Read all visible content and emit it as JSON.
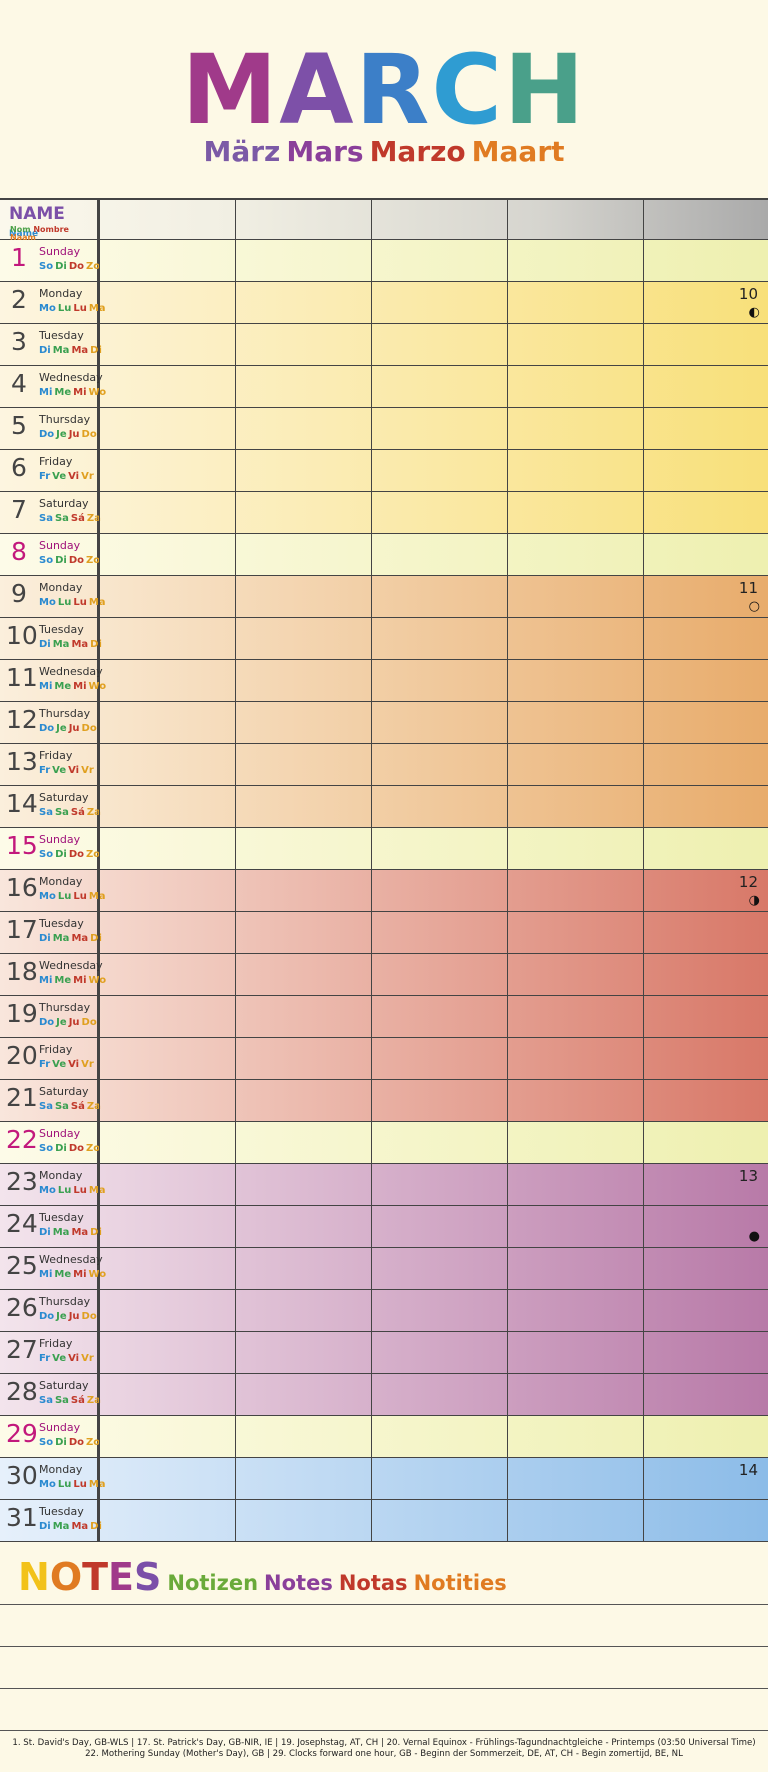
{
  "title": {
    "letters": [
      {
        "t": "M",
        "color": "#a03a8a"
      },
      {
        "t": "A",
        "color": "#7d50a8"
      },
      {
        "t": "R",
        "color": "#3c7fc8"
      },
      {
        "t": "C",
        "color": "#2f9cd2"
      },
      {
        "t": "H",
        "color": "#4aa08a"
      }
    ],
    "translations": [
      {
        "t": "März",
        "color": "#7b5aa6"
      },
      {
        "t": "Mars",
        "color": "#8a3f9a"
      },
      {
        "t": "Marzo",
        "color": "#c0392b"
      },
      {
        "t": "Maart",
        "color": "#e07b22"
      }
    ]
  },
  "header": {
    "name": "NAME",
    "name_en": "Name",
    "name_others": [
      {
        "t": "Nom",
        "color": "#4aa048"
      },
      {
        "t": "Nombre",
        "color": "#c0392b"
      },
      {
        "t": "Naam",
        "color": "#e07b22"
      }
    ]
  },
  "abbr_sets": {
    "Sunday": [
      "So",
      "Di",
      "Do",
      "Zo"
    ],
    "Monday": [
      "Mo",
      "Lu",
      "Lu",
      "Ma"
    ],
    "Tuesday": [
      "Di",
      "Ma",
      "Ma",
      "Di"
    ],
    "Wednesday": [
      "Mi",
      "Me",
      "Mi",
      "Wo"
    ],
    "Thursday": [
      "Do",
      "Je",
      "Ju",
      "Do"
    ],
    "Friday": [
      "Fr",
      "Ve",
      "Vi",
      "Vr"
    ],
    "Saturday": [
      "Sa",
      "Sa",
      "Sá",
      "Za"
    ]
  },
  "abbr_colors": [
    "#2a8ad0",
    "#3aa050",
    "#c0392b",
    "#e0a020"
  ],
  "days": [
    {
      "n": "1",
      "name": "Sunday",
      "band": "sun"
    },
    {
      "n": "2",
      "name": "Monday",
      "band": "yellow",
      "moon_num": "10",
      "moon": "◐"
    },
    {
      "n": "3",
      "name": "Tuesday",
      "band": "yellow"
    },
    {
      "n": "4",
      "name": "Wednesday",
      "band": "yellow"
    },
    {
      "n": "5",
      "name": "Thursday",
      "band": "yellow"
    },
    {
      "n": "6",
      "name": "Friday",
      "band": "yellow"
    },
    {
      "n": "7",
      "name": "Saturday",
      "band": "yellow"
    },
    {
      "n": "8",
      "name": "Sunday",
      "band": "sun"
    },
    {
      "n": "9",
      "name": "Monday",
      "band": "orange",
      "moon_num": "11",
      "moon": "○"
    },
    {
      "n": "10",
      "name": "Tuesday",
      "band": "orange"
    },
    {
      "n": "11",
      "name": "Wednesday",
      "band": "orange"
    },
    {
      "n": "12",
      "name": "Thursday",
      "band": "orange"
    },
    {
      "n": "13",
      "name": "Friday",
      "band": "orange"
    },
    {
      "n": "14",
      "name": "Saturday",
      "band": "orange"
    },
    {
      "n": "15",
      "name": "Sunday",
      "band": "sun"
    },
    {
      "n": "16",
      "name": "Monday",
      "band": "red",
      "moon_num": "12",
      "moon": "◑"
    },
    {
      "n": "17",
      "name": "Tuesday",
      "band": "red"
    },
    {
      "n": "18",
      "name": "Wednesday",
      "band": "red"
    },
    {
      "n": "19",
      "name": "Thursday",
      "band": "red"
    },
    {
      "n": "20",
      "name": "Friday",
      "band": "red"
    },
    {
      "n": "21",
      "name": "Saturday",
      "band": "red"
    },
    {
      "n": "22",
      "name": "Sunday",
      "band": "sun"
    },
    {
      "n": "23",
      "name": "Monday",
      "band": "purple",
      "moon_num": "13"
    },
    {
      "n": "24",
      "name": "Tuesday",
      "band": "purple",
      "moon": "●"
    },
    {
      "n": "25",
      "name": "Wednesday",
      "band": "purple"
    },
    {
      "n": "26",
      "name": "Thursday",
      "band": "purple"
    },
    {
      "n": "27",
      "name": "Friday",
      "band": "purple"
    },
    {
      "n": "28",
      "name": "Saturday",
      "band": "purple"
    },
    {
      "n": "29",
      "name": "Sunday",
      "band": "sun"
    },
    {
      "n": "30",
      "name": "Monday",
      "band": "blue",
      "moon_num": "14"
    },
    {
      "n": "31",
      "name": "Tuesday",
      "band": "blue"
    }
  ],
  "band_colors": {
    "sun": [
      "#fdfbe8",
      "#eef0b0"
    ],
    "yellow": [
      "#fdf5e0",
      "#f8e07a"
    ],
    "orange": [
      "#fbefdc",
      "#e8ac6c"
    ],
    "red": [
      "#f9e6dc",
      "#d87868"
    ],
    "purple": [
      "#f3e4ec",
      "#b87aa8"
    ],
    "blue": [
      "#e6f0fb",
      "#8cbce8"
    ]
  },
  "notes": {
    "letters": [
      {
        "t": "N",
        "color": "#f2c21a"
      },
      {
        "t": "O",
        "color": "#e07b22"
      },
      {
        "t": "T",
        "color": "#c0392b"
      },
      {
        "t": "E",
        "color": "#a03a8a"
      },
      {
        "t": "S",
        "color": "#7b4fa8"
      }
    ],
    "translations": [
      {
        "t": "Notizen",
        "color": "#6aaa3a"
      },
      {
        "t": "Notes",
        "color": "#8a3f9a"
      },
      {
        "t": "Notas",
        "color": "#c0392b"
      },
      {
        "t": "Notities",
        "color": "#e07b22"
      }
    ]
  },
  "footer": {
    "line1": "1. St. David's Day, GB-WLS  |  17. St. Patrick's Day, GB-NIR, IE  |  19. Josephstag, AT, CH  |  20. Vernal Equinox - Frühlings-Tagundnachtgleiche - Printemps (03:50 Universal Time)",
    "line2": "22. Mothering Sunday (Mother's Day), GB  |  29. Clocks forward one hour, GB - Beginn der Sommerzeit, DE, AT, CH - Begin zomertijd, BE, NL"
  }
}
